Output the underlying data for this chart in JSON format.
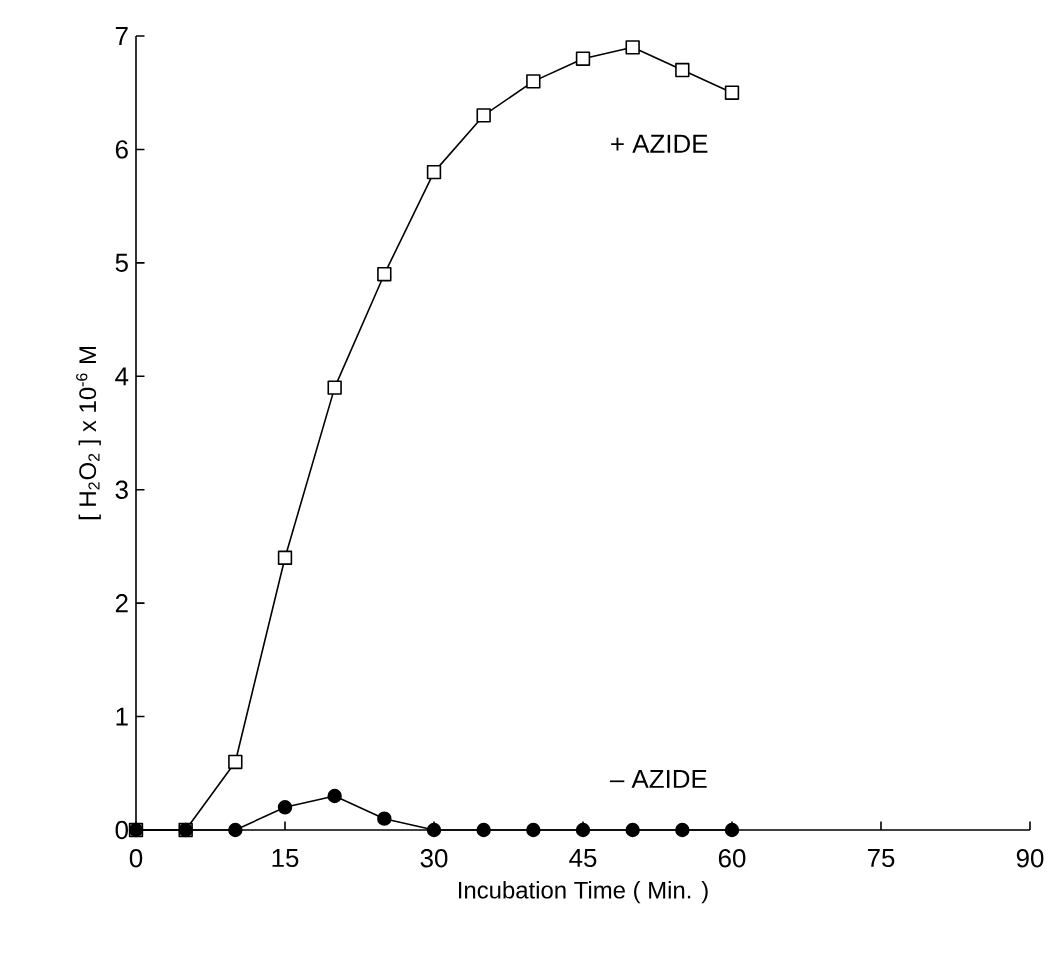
{
  "chart_data": {
    "type": "line",
    "xlabel": "Incubation Time ( Min. )",
    "ylabel": "[ H$_{2}$O$_{2}$ ] x 10$^{-6}$ M",
    "xlim": [
      0,
      90
    ],
    "ylim": [
      0,
      7
    ],
    "xticks": [
      0,
      15,
      30,
      45,
      60,
      75,
      90
    ],
    "yticks": [
      0,
      1,
      2,
      3,
      4,
      5,
      6,
      7
    ],
    "x": [
      0,
      5,
      10,
      15,
      20,
      25,
      30,
      35,
      40,
      45,
      50,
      55,
      60
    ],
    "series": [
      {
        "name": "+ AZIDE",
        "color": "#000000",
        "marker": "square",
        "values": [
          0,
          0,
          0.6,
          2.4,
          3.9,
          4.9,
          5.8,
          6.3,
          6.6,
          6.8,
          6.9,
          6.7,
          6.5
        ]
      },
      {
        "name": "– AZIDE",
        "color": "#000000",
        "marker": "circle",
        "values": [
          0,
          0,
          0,
          0.2,
          0.3,
          0.1,
          0,
          0,
          0,
          0,
          0,
          0,
          0
        ]
      }
    ],
    "grid": false,
    "legend": false,
    "line_style": "solid"
  }
}
